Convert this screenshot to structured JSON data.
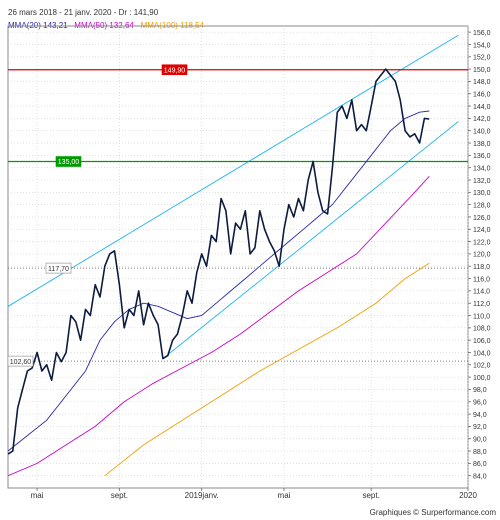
{
  "header": {
    "period": "26 mars 2018 - 21 janv. 2020 - Dr : 141,90"
  },
  "credit": "Graphiques © Surperformance.com",
  "chart_data": {
    "type": "line",
    "title": "",
    "xlabel": "",
    "ylabel": "",
    "ylim": [
      82,
      157
    ],
    "grid": true,
    "grid_style": "dotted",
    "y_ticks": [
      "84,0",
      "86,0",
      "88,0",
      "90,0",
      "92,0",
      "94,0",
      "96,0",
      "98,0",
      "100,0",
      "102,0",
      "104,0",
      "106,0",
      "108,0",
      "110,0",
      "112,0",
      "114,0",
      "116,0",
      "118,0",
      "120,0",
      "122,0",
      "124,0",
      "126,0",
      "128,0",
      "130,0",
      "132,0",
      "134,0",
      "136,0",
      "138,0",
      "140,0",
      "142,0",
      "144,0",
      "146,0",
      "148,0",
      "150,0",
      "152,0",
      "154,0",
      "156,0"
    ],
    "x_ticks": [
      {
        "label": "mai",
        "week": 6
      },
      {
        "label": "sept.",
        "week": 23
      },
      {
        "label": "2019janv.",
        "week": 40
      },
      {
        "label": "mai",
        "week": 57
      },
      {
        "label": "sept.",
        "week": 75
      },
      {
        "label": "2020",
        "week": 95
      }
    ],
    "x_range": [
      0,
      95
    ],
    "legend": [
      {
        "label": "MMA(20)",
        "value": "143,21",
        "color": "#2a2aa8"
      },
      {
        "label": "MMA(50)",
        "value": "132,64",
        "color": "#cc00cc"
      },
      {
        "label": "MMA(100)",
        "value": "118,54",
        "color": "#f0a000"
      }
    ],
    "price": {
      "color": "#0d1b3e",
      "values": [
        87.5,
        88.0,
        95.0,
        98.0,
        101.0,
        101.5,
        104.0,
        101.0,
        102.0,
        99.5,
        104.0,
        102.5,
        104.0,
        110.0,
        109.0,
        106.0,
        111.0,
        110.0,
        115.0,
        113.0,
        118.0,
        120.0,
        120.5,
        115.0,
        108.0,
        111.0,
        110.0,
        114.0,
        108.5,
        112.0,
        110.0,
        108.5,
        103.0,
        103.5,
        106.0,
        107.0,
        110.0,
        114.0,
        112.0,
        117.0,
        120.0,
        118.0,
        123.0,
        122.0,
        129.0,
        127.0,
        120.0,
        125.0,
        124.0,
        127.0,
        120.0,
        121.0,
        127.0,
        124.0,
        122.0,
        120.5,
        118.0,
        124.0,
        128.0,
        126.0,
        129.0,
        127.0,
        132.0,
        135.0,
        130.0,
        127.0,
        126.5,
        134.0,
        143.0,
        144.0,
        142.0,
        145.0,
        140.0,
        141.0,
        140.0,
        144.0,
        148.0,
        149.0,
        150.0,
        149.0,
        148.0,
        145.0,
        140.0,
        139.0,
        139.5,
        138.0,
        142.0,
        141.9
      ]
    },
    "moving_averages": [
      {
        "name": "MMA(20)",
        "color": "#2a2aa8",
        "points": [
          [
            0,
            88
          ],
          [
            8,
            93
          ],
          [
            12,
            97
          ],
          [
            16,
            101
          ],
          [
            19,
            106
          ],
          [
            22,
            109
          ],
          [
            25,
            111
          ],
          [
            28,
            112
          ],
          [
            31,
            111.5
          ],
          [
            34,
            110.5
          ],
          [
            37,
            109.5
          ],
          [
            40,
            110
          ],
          [
            43,
            112
          ],
          [
            46,
            114
          ],
          [
            49,
            116
          ],
          [
            52,
            118
          ],
          [
            55,
            120
          ],
          [
            58,
            122
          ],
          [
            61,
            124
          ],
          [
            64,
            126
          ],
          [
            67,
            128
          ],
          [
            70,
            131
          ],
          [
            73,
            134
          ],
          [
            76,
            137
          ],
          [
            79,
            140
          ],
          [
            82,
            142
          ],
          [
            85,
            143
          ],
          [
            87,
            143.2
          ]
        ]
      },
      {
        "name": "MMA(50)",
        "color": "#cc00cc",
        "points": [
          [
            0,
            84
          ],
          [
            6,
            86
          ],
          [
            12,
            89
          ],
          [
            18,
            92
          ],
          [
            24,
            96
          ],
          [
            30,
            99
          ],
          [
            36,
            101.5
          ],
          [
            42,
            104
          ],
          [
            48,
            107
          ],
          [
            54,
            110.5
          ],
          [
            60,
            114
          ],
          [
            66,
            117
          ],
          [
            72,
            120
          ],
          [
            78,
            125
          ],
          [
            84,
            130
          ],
          [
            87,
            132.6
          ]
        ]
      },
      {
        "name": "MMA(100)",
        "color": "#f0a000",
        "points": [
          [
            20,
            84
          ],
          [
            28,
            89
          ],
          [
            36,
            93
          ],
          [
            44,
            97
          ],
          [
            52,
            101
          ],
          [
            60,
            104.5
          ],
          [
            68,
            108
          ],
          [
            76,
            112
          ],
          [
            82,
            116
          ],
          [
            87,
            118.5
          ]
        ]
      }
    ],
    "channel_lines": [
      {
        "name": "upper",
        "color": "#1fb6ee",
        "from": [
          -1,
          111
        ],
        "to": [
          93,
          155.5
        ]
      },
      {
        "name": "lower",
        "color": "#1fb6ee",
        "from": [
          32,
          103
        ],
        "to": [
          93,
          141.5
        ]
      }
    ],
    "levels": [
      {
        "name": "resistance",
        "label": "149,90",
        "value": 149.9,
        "color": "#e00000",
        "line": "solid",
        "label_bg": "#e00000",
        "label_fg": "#ffffff"
      },
      {
        "name": "support",
        "label": "135,00",
        "value": 135.0,
        "color": "#009900",
        "line": "solid",
        "label_bg": "#009900",
        "label_fg": "#ffffff"
      },
      {
        "name": "level-117",
        "label": "117,70",
        "value": 117.7,
        "color": "#555555",
        "line": "dotted",
        "label_bg": "#ffffff",
        "label_fg": "#333333"
      },
      {
        "name": "level-102",
        "label": "102,60",
        "value": 102.6,
        "color": "#555555",
        "line": "dotted",
        "label_bg": "#ffffff",
        "label_fg": "#333333"
      }
    ]
  }
}
